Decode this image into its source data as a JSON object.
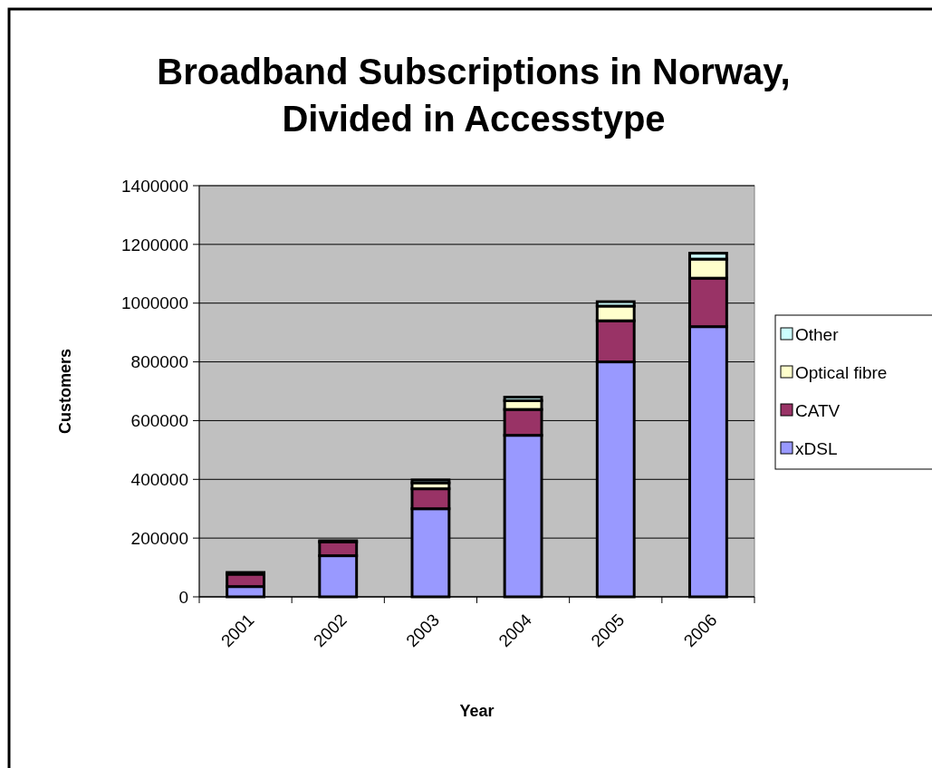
{
  "chart_data": {
    "type": "bar",
    "title": "Broadband Subscriptions in Norway, Divided in Accesstype",
    "xlabel": "Year",
    "ylabel": "Customers",
    "categories": [
      "2001",
      "2002",
      "2003",
      "2004",
      "2005",
      "2006"
    ],
    "stacked": true,
    "series": [
      {
        "name": "xDSL",
        "color": "#9999ff",
        "values": [
          35000,
          140000,
          300000,
          550000,
          800000,
          920000
        ]
      },
      {
        "name": "CATV",
        "color": "#993366",
        "values": [
          42000,
          47000,
          68000,
          88000,
          140000,
          165000
        ]
      },
      {
        "name": "Optical fibre",
        "color": "#ffffcc",
        "values": [
          null,
          null,
          20000,
          30000,
          50000,
          65000
        ]
      },
      {
        "name": "Other",
        "color": "#ccffff",
        "values": [
          6000,
          4000,
          10000,
          12000,
          15000,
          20000
        ]
      }
    ],
    "ylim": [
      0,
      1400000
    ],
    "yticks": [
      0,
      200000,
      400000,
      600000,
      800000,
      1000000,
      1200000,
      1400000
    ],
    "grid": "y",
    "legend": "right"
  }
}
